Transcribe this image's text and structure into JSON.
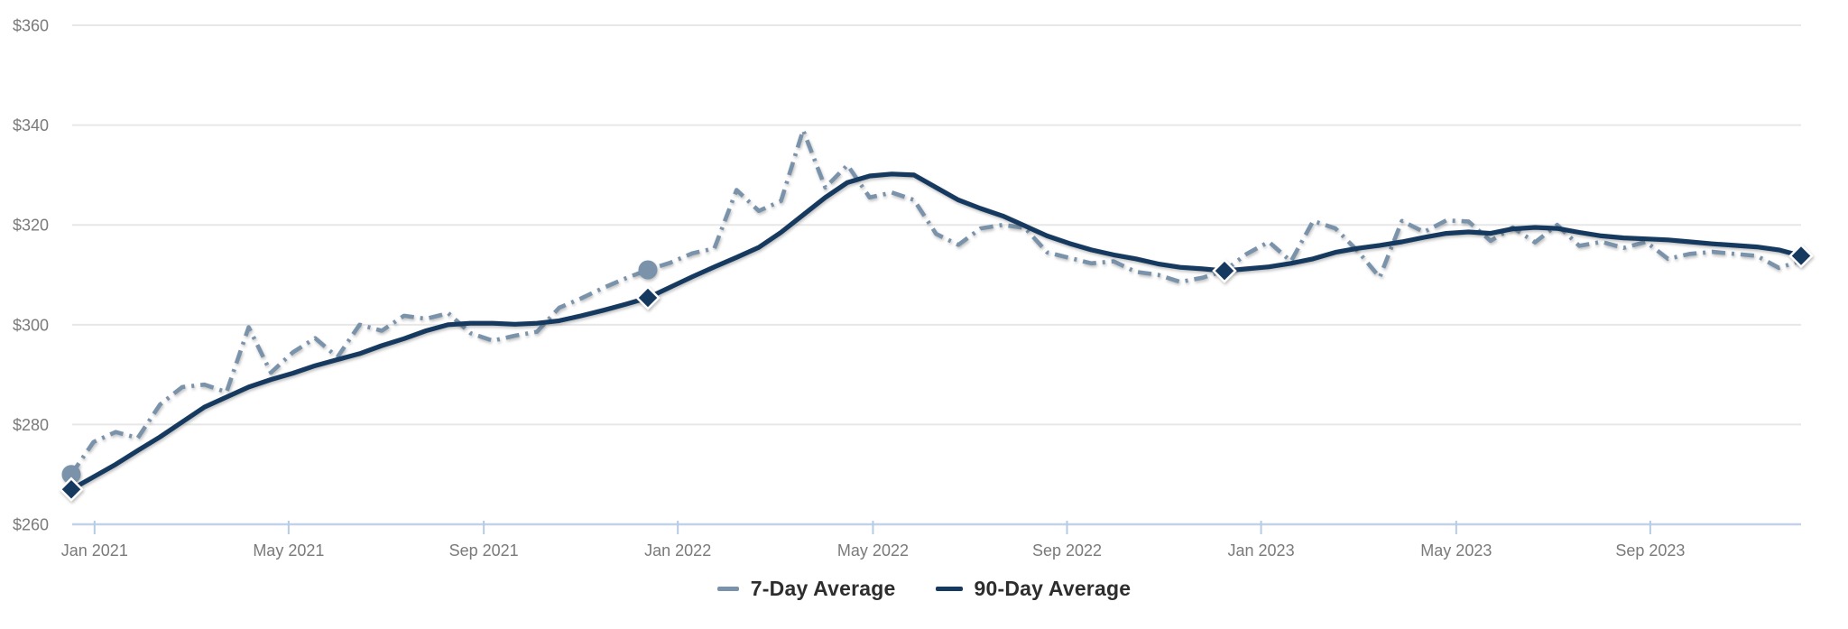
{
  "chart_data": {
    "type": "line",
    "title": "",
    "xlabel": "",
    "ylabel": "",
    "y_unit": "USD",
    "x_unit": "weeks (0 = first data point, Jan 2021)",
    "ylim": [
      260,
      360
    ],
    "xlim_weeks": [
      0,
      156
    ],
    "grid": "horizontal-only",
    "legend_position": "bottom-center",
    "x": [
      0,
      2,
      4,
      6,
      8,
      10,
      12,
      14,
      16,
      18,
      20,
      22,
      24,
      26,
      28,
      30,
      32,
      34,
      36,
      38,
      40,
      42,
      44,
      46,
      48,
      50,
      52,
      54,
      56,
      58,
      60,
      62,
      64,
      66,
      68,
      70,
      72,
      74,
      76,
      78,
      80,
      82,
      84,
      86,
      88,
      90,
      92,
      94,
      96,
      98,
      100,
      102,
      104,
      106,
      108,
      110,
      112,
      114,
      116,
      118,
      120,
      122,
      124,
      126,
      128,
      130,
      132,
      134,
      136,
      138,
      140,
      142,
      144,
      146,
      148,
      150,
      152,
      154,
      156
    ],
    "series": [
      {
        "name": "7-Day Average",
        "color": "#7b93aa",
        "line_style": "dash-dot",
        "values": [
          270,
          276.5,
          278.5,
          277.3,
          284,
          287.5,
          288,
          286.5,
          299.5,
          290.4,
          294.5,
          297.3,
          293.5,
          300,
          298.8,
          301.8,
          301.2,
          302.3,
          298.3,
          296.8,
          297.8,
          298.6,
          303.4,
          305.3,
          307.4,
          309.3,
          311,
          312.4,
          314.3,
          315.3,
          327,
          322.8,
          324.8,
          339,
          327.5,
          332,
          325.5,
          326.5,
          325,
          318.2,
          316,
          319.3,
          320,
          319.4,
          314.5,
          313.4,
          312.3,
          312.7,
          310.6,
          310,
          308.6,
          309.4,
          310.8,
          314.2,
          316.6,
          312.7,
          320.8,
          319.3,
          314.8,
          309.5,
          320.8,
          318.6,
          320.9,
          320.7,
          316.8,
          319.5,
          316.5,
          320,
          315.8,
          316.6,
          315.4,
          316.6,
          313.2,
          314.2,
          314.6,
          314.2,
          313.8,
          311.4,
          312.8
        ]
      },
      {
        "name": "90-Day Average",
        "color": "#163a5f",
        "line_style": "solid",
        "values": [
          267,
          269.5,
          272,
          274.8,
          277.5,
          280.5,
          283.5,
          285.5,
          287.5,
          289,
          290.3,
          291.8,
          293,
          294.2,
          295.8,
          297.2,
          298.8,
          300,
          300.3,
          300.3,
          300.1,
          300.3,
          300.8,
          301.8,
          302.9,
          304.1,
          305.4,
          307.5,
          309.6,
          311.6,
          313.5,
          315.5,
          318.5,
          322,
          325.5,
          328.5,
          329.8,
          330.2,
          330,
          327.5,
          325,
          323.3,
          321.8,
          319.8,
          317.8,
          316.3,
          315,
          314,
          313.2,
          312.2,
          311.5,
          311.2,
          310.8,
          311.2,
          311.6,
          312.3,
          313.2,
          314.5,
          315.3,
          315.9,
          316.6,
          317.5,
          318.3,
          318.6,
          318.3,
          319.2,
          319.5,
          319.3,
          318.5,
          317.8,
          317.4,
          317.2,
          317,
          316.6,
          316.2,
          315.9,
          315.6,
          315,
          313.8
        ]
      }
    ],
    "markers": {
      "circle_series": "7-Day Average",
      "circle_weeks": [
        0,
        52
      ],
      "diamond_series": "90-Day Average",
      "diamond_weeks": [
        0,
        52,
        104,
        156
      ]
    },
    "y_ticks": [
      {
        "label": "$360",
        "value": 360
      },
      {
        "label": "$340",
        "value": 340
      },
      {
        "label": "$320",
        "value": 320
      },
      {
        "label": "$300",
        "value": 300
      },
      {
        "label": "$280",
        "value": 280
      },
      {
        "label": "$260",
        "value": 260
      }
    ],
    "x_ticks": [
      {
        "label": "Jan 2021",
        "week": 2.1
      },
      {
        "label": "May 2021",
        "week": 19.6
      },
      {
        "label": "Sep 2021",
        "week": 37.2
      },
      {
        "label": "Jan 2022",
        "week": 54.7
      },
      {
        "label": "May 2022",
        "week": 72.3
      },
      {
        "label": "Sep 2022",
        "week": 89.8
      },
      {
        "label": "Jan 2023",
        "week": 107.3
      },
      {
        "label": "May 2023",
        "week": 124.9
      },
      {
        "label": "Sep 2023",
        "week": 142.4
      }
    ],
    "colors": {
      "grid": "#e7e7e7",
      "axis_line": "#c3d2e8",
      "tick_text": "#7a7a7a",
      "legend_text": "#2d2d2d",
      "background": "#ffffff"
    }
  }
}
